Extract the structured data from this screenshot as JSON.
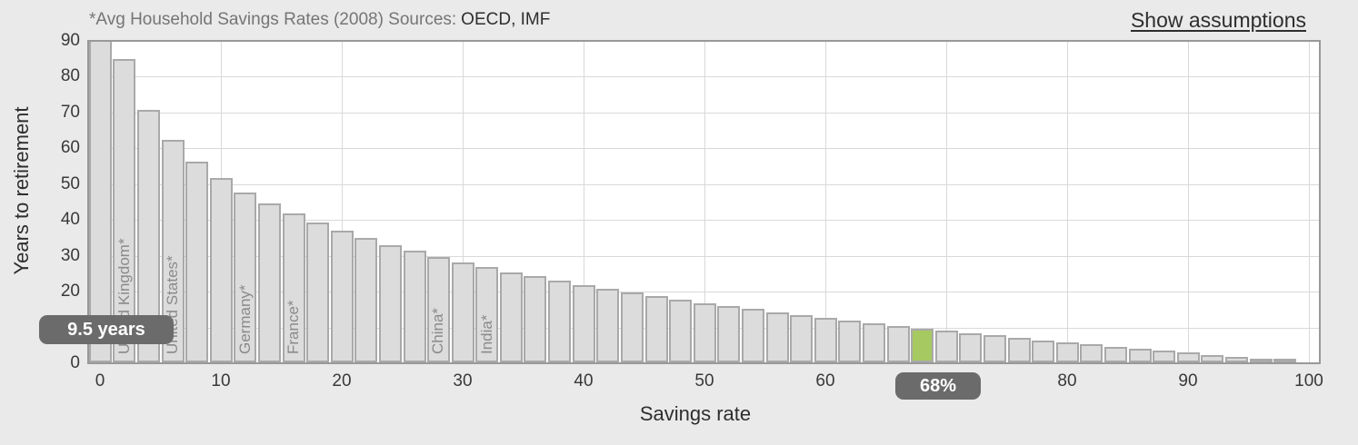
{
  "header": {
    "note": "*Avg Household Savings Rates (2008) Sources:",
    "sources": "OECD, IMF",
    "assumptions_link": "Show assumptions"
  },
  "chart_data": {
    "type": "bar",
    "xlabel": "Savings rate",
    "ylabel": "Years to retirement",
    "xlim": [
      0,
      100
    ],
    "ylim": [
      0,
      90
    ],
    "x_ticks": [
      0,
      10,
      20,
      30,
      40,
      50,
      60,
      70,
      80,
      90,
      100
    ],
    "y_ticks": [
      0,
      10,
      20,
      30,
      40,
      50,
      60,
      70,
      80,
      90
    ],
    "grid": true,
    "bar_step": 2,
    "x": [
      0,
      2,
      4,
      6,
      8,
      10,
      12,
      14,
      16,
      18,
      20,
      22,
      24,
      26,
      28,
      30,
      32,
      34,
      36,
      38,
      40,
      42,
      44,
      46,
      48,
      50,
      52,
      54,
      56,
      58,
      60,
      62,
      64,
      66,
      68,
      70,
      72,
      74,
      76,
      78,
      80,
      82,
      84,
      86,
      88,
      90,
      92,
      94,
      96,
      98,
      100
    ],
    "y": [
      90,
      84.7,
      70.4,
      62,
      56,
      51.4,
      47.5,
      44.3,
      41.5,
      39,
      36.7,
      34.7,
      32.8,
      31.1,
      29.5,
      28,
      26.6,
      25.2,
      24,
      22.8,
      21.6,
      20.6,
      19.5,
      18.5,
      17.5,
      16.6,
      15.7,
      14.9,
      14,
      13.2,
      12.4,
      11.7,
      10.9,
      10.2,
      9.5,
      8.8,
      8.1,
      7.5,
      6.8,
      6.2,
      5.6,
      5,
      4.4,
      3.8,
      3.2,
      2.7,
      2.1,
      1.6,
      1,
      0.5,
      0
    ],
    "highlight": {
      "x": 68,
      "years": 9.5,
      "years_label": "9.5 years",
      "rate_label": "68%"
    },
    "country_labels": [
      {
        "label": "United Kingdom*",
        "x": 2
      },
      {
        "label": "United States*",
        "x": 6
      },
      {
        "label": "Germany*",
        "x": 12
      },
      {
        "label": "France*",
        "x": 16
      },
      {
        "label": "China*",
        "x": 28
      },
      {
        "label": "India*",
        "x": 32
      }
    ],
    "colors": {
      "bar_fill": "#dcdcdc",
      "bar_border": "#a9a9a9",
      "highlight_fill": "#a6c961",
      "grid": "#d9d9d9",
      "plot_border": "#999999",
      "badge_bg": "#6b6b6b",
      "badge_text": "#ffffff"
    }
  }
}
